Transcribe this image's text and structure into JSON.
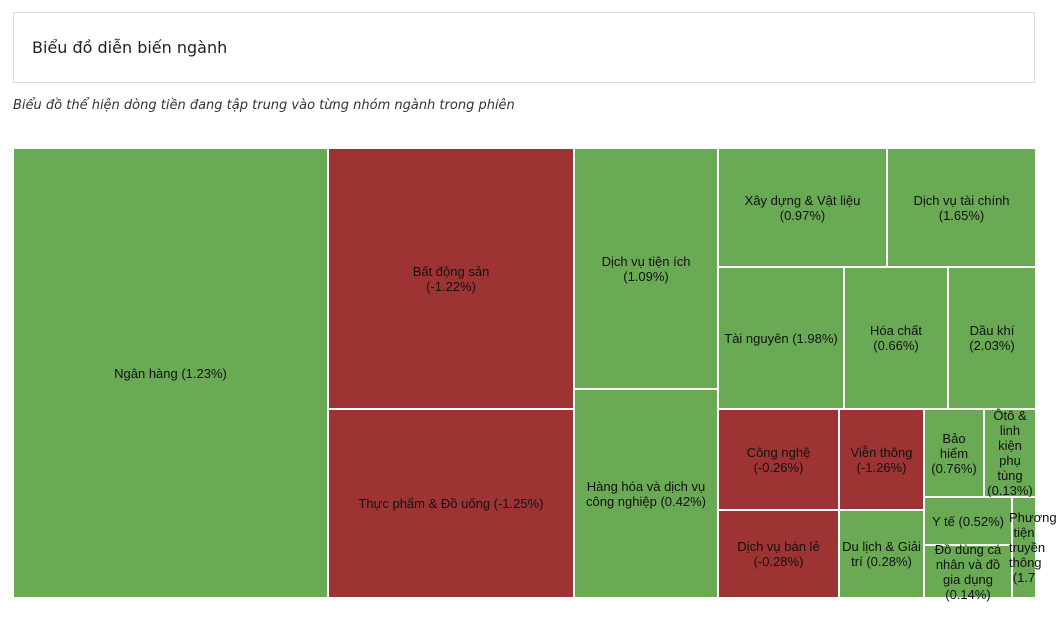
{
  "header": {
    "title": "Biểu đồ diễn biến ngành"
  },
  "subtitle": "Biểu đồ thể hiện dòng tiền đang tập trung vào từng nhóm ngành trong phiên",
  "colors": {
    "positive": "#6aaa55",
    "negative": "#9e3333"
  },
  "chart_data": {
    "type": "treemap",
    "title": "",
    "items": [
      {
        "name": "Ngân hàng",
        "change_pct": 1.23,
        "label": "Ngân hàng (1.23%)"
      },
      {
        "name": "Bất động sản",
        "change_pct": -1.22,
        "label": "Bất động sản (-1.22%)"
      },
      {
        "name": "Thực phẩm & Đồ uống",
        "change_pct": -1.25,
        "label": "Thực phẩm & Đồ uống (-1.25%)"
      },
      {
        "name": "Dịch vụ tiện ích",
        "change_pct": 1.09,
        "label": "Dịch vụ tiện ích (1.09%)"
      },
      {
        "name": "Hàng hóa và dịch vụ công nghiệp",
        "change_pct": 0.42,
        "label": "Hàng hóa và dịch vụ công nghiệp (0.42%)"
      },
      {
        "name": "Xây dựng & Vật liệu",
        "change_pct": 0.97,
        "label": "Xây dựng & Vật liệu (0.97%)"
      },
      {
        "name": "Dịch vụ tài chính",
        "change_pct": 1.65,
        "label": "Dịch vụ tài chính (1.65%)"
      },
      {
        "name": "Tài nguyên",
        "change_pct": 1.98,
        "label": "Tài nguyên (1.98%)"
      },
      {
        "name": "Hóa chất",
        "change_pct": 0.66,
        "label": "Hóa chất (0.66%)"
      },
      {
        "name": "Dầu khí",
        "change_pct": 2.03,
        "label": "Dầu khí (2.03%)"
      },
      {
        "name": "Công nghệ",
        "change_pct": -0.26,
        "label": "Công nghệ (-0.26%)"
      },
      {
        "name": "Viễn thông",
        "change_pct": -1.26,
        "label": "Viễn thông (-1.26%)"
      },
      {
        "name": "Bảo hiểm",
        "change_pct": 0.76,
        "label": "Bảo hiểm (0.76%)"
      },
      {
        "name": "Ôtô & linh kiện phụ tùng",
        "change_pct": 0.13,
        "label": "Ôtô & linh kiện phụ tùng (0.13%)"
      },
      {
        "name": "Dịch vụ bán lẻ",
        "change_pct": -0.28,
        "label": "Dịch vụ bán lẻ (-0.28%)"
      },
      {
        "name": "Du lịch & Giải trí",
        "change_pct": 0.28,
        "label": "Du lịch & Giải trí (0.28%)"
      },
      {
        "name": "Y tế",
        "change_pct": 0.52,
        "label": "Y tế (0.52%)"
      },
      {
        "name": "Đồ dùng cá nhân và đồ gia dụng",
        "change_pct": 0.14,
        "label": "Đồ dùng cá nhân và đồ gia dụng (0.14%)"
      },
      {
        "name": "Phương tiện truyền thông",
        "change_pct": 1.7,
        "label": "Phương tiện truyền thông (1.7"
      }
    ]
  }
}
